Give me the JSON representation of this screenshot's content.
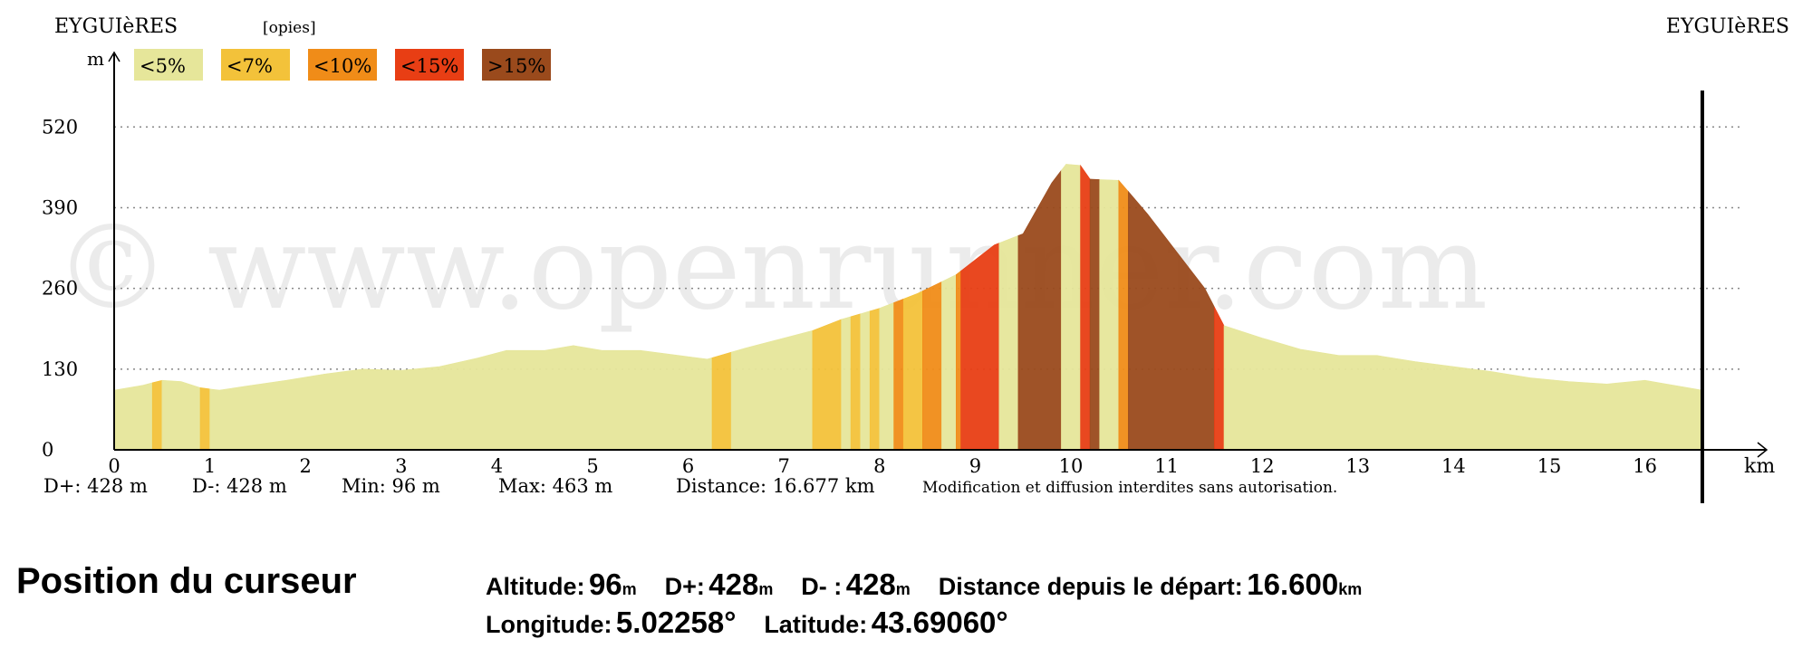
{
  "chart_data": {
    "type": "area",
    "start_label": "EYGUIèRES",
    "end_label": "EYGUIèRES",
    "copy_label": "[opies]",
    "watermark": "© www.openrunner.com",
    "ylabel": "m",
    "xlabel": "km",
    "ylim": [
      0,
      560
    ],
    "xlim": [
      0,
      17
    ],
    "y_ticks": [
      0,
      130,
      260,
      390,
      520
    ],
    "x_ticks": [
      0,
      1,
      2,
      3,
      4,
      5,
      6,
      7,
      8,
      9,
      10,
      11,
      12,
      13,
      14,
      15,
      16
    ],
    "grid": "horizontal dotted",
    "end_marker_x": 16.6,
    "legend": [
      {
        "label": "<5%",
        "color": "#e6e69a"
      },
      {
        "label": "<7%",
        "color": "#f3c23a"
      },
      {
        "label": "<10%",
        "color": "#f08c18"
      },
      {
        "label": "<15%",
        "color": "#e83e14"
      },
      {
        "label": ">15%",
        "color": "#9a4a1c"
      }
    ],
    "profile": [
      [
        0,
        96
      ],
      [
        0.3,
        104
      ],
      [
        0.5,
        112
      ],
      [
        0.7,
        110
      ],
      [
        0.9,
        100
      ],
      [
        1.1,
        96
      ],
      [
        1.4,
        103
      ],
      [
        1.8,
        112
      ],
      [
        2.2,
        122
      ],
      [
        2.6,
        130
      ],
      [
        3.0,
        128
      ],
      [
        3.4,
        134
      ],
      [
        3.8,
        148
      ],
      [
        4.1,
        160
      ],
      [
        4.5,
        160
      ],
      [
        4.8,
        168
      ],
      [
        5.1,
        160
      ],
      [
        5.5,
        160
      ],
      [
        5.9,
        152
      ],
      [
        6.2,
        146
      ],
      [
        6.6,
        164
      ],
      [
        7.0,
        180
      ],
      [
        7.3,
        192
      ],
      [
        7.6,
        210
      ],
      [
        8.0,
        228
      ],
      [
        8.4,
        252
      ],
      [
        8.8,
        282
      ],
      [
        9.2,
        330
      ],
      [
        9.5,
        348
      ],
      [
        9.8,
        430
      ],
      [
        9.95,
        460
      ],
      [
        10.1,
        458
      ],
      [
        10.2,
        436
      ],
      [
        10.5,
        434
      ],
      [
        10.8,
        380
      ],
      [
        11.1,
        320
      ],
      [
        11.4,
        260
      ],
      [
        11.6,
        200
      ],
      [
        12.0,
        180
      ],
      [
        12.4,
        162
      ],
      [
        12.8,
        152
      ],
      [
        13.2,
        152
      ],
      [
        13.6,
        142
      ],
      [
        14.0,
        134
      ],
      [
        14.4,
        126
      ],
      [
        14.8,
        116
      ],
      [
        15.2,
        110
      ],
      [
        15.6,
        106
      ],
      [
        16.0,
        112
      ],
      [
        16.3,
        104
      ],
      [
        16.6,
        96
      ]
    ],
    "segments": [
      {
        "x0": 0,
        "x1": 0.4,
        "grade": 0
      },
      {
        "x0": 0.4,
        "x1": 0.5,
        "grade": 1
      },
      {
        "x0": 0.5,
        "x1": 0.9,
        "grade": 0
      },
      {
        "x0": 0.9,
        "x1": 1.0,
        "grade": 1
      },
      {
        "x0": 1.0,
        "x1": 6.25,
        "grade": 0
      },
      {
        "x0": 6.25,
        "x1": 6.45,
        "grade": 1
      },
      {
        "x0": 6.45,
        "x1": 7.3,
        "grade": 0
      },
      {
        "x0": 7.3,
        "x1": 7.6,
        "grade": 1
      },
      {
        "x0": 7.6,
        "x1": 7.7,
        "grade": 0
      },
      {
        "x0": 7.7,
        "x1": 7.8,
        "grade": 1
      },
      {
        "x0": 7.8,
        "x1": 7.9,
        "grade": 0
      },
      {
        "x0": 7.9,
        "x1": 8.0,
        "grade": 1
      },
      {
        "x0": 8.0,
        "x1": 8.15,
        "grade": 0
      },
      {
        "x0": 8.15,
        "x1": 8.25,
        "grade": 2
      },
      {
        "x0": 8.25,
        "x1": 8.45,
        "grade": 1
      },
      {
        "x0": 8.45,
        "x1": 8.65,
        "grade": 2
      },
      {
        "x0": 8.65,
        "x1": 8.8,
        "grade": 0
      },
      {
        "x0": 8.8,
        "x1": 8.85,
        "grade": 2
      },
      {
        "x0": 8.85,
        "x1": 9.25,
        "grade": 3
      },
      {
        "x0": 9.25,
        "x1": 9.45,
        "grade": 0
      },
      {
        "x0": 9.45,
        "x1": 9.9,
        "grade": 4
      },
      {
        "x0": 9.9,
        "x1": 10.1,
        "grade": 0
      },
      {
        "x0": 10.1,
        "x1": 10.2,
        "grade": 3
      },
      {
        "x0": 10.2,
        "x1": 10.3,
        "grade": 4
      },
      {
        "x0": 10.3,
        "x1": 10.5,
        "grade": 0
      },
      {
        "x0": 10.5,
        "x1": 10.6,
        "grade": 2
      },
      {
        "x0": 10.6,
        "x1": 11.5,
        "grade": 4
      },
      {
        "x0": 11.5,
        "x1": 11.6,
        "grade": 3
      },
      {
        "x0": 11.6,
        "x1": 16.6,
        "grade": 0
      }
    ],
    "stats": [
      {
        "text": "D+: 428 m",
        "x": 0
      },
      {
        "text": "D-: 428 m",
        "x": 1.6
      },
      {
        "text": "Min: 96 m",
        "x": 3.2
      },
      {
        "text": "Max: 463 m",
        "x": 4.9
      },
      {
        "text": "Distance: 16.677 km",
        "x": 6.0
      }
    ],
    "notice": "Modification et diffusion interdites sans autorisation."
  },
  "cursor": {
    "title": "Position du curseur",
    "altitude_label": "Altitude:",
    "altitude_value": "96",
    "altitude_unit": "m",
    "dplus_label": "D+:",
    "dplus_value": "428",
    "dplus_unit": "m",
    "dminus_label": "D- :",
    "dminus_value": "428",
    "dminus_unit": "m",
    "distance_label": "Distance depuis le départ:",
    "distance_value": "16.600",
    "distance_unit": "km",
    "longitude_label": "Longitude:",
    "longitude_value": "5.02258°",
    "latitude_label": "Latitude:",
    "latitude_value": "43.69060°"
  }
}
